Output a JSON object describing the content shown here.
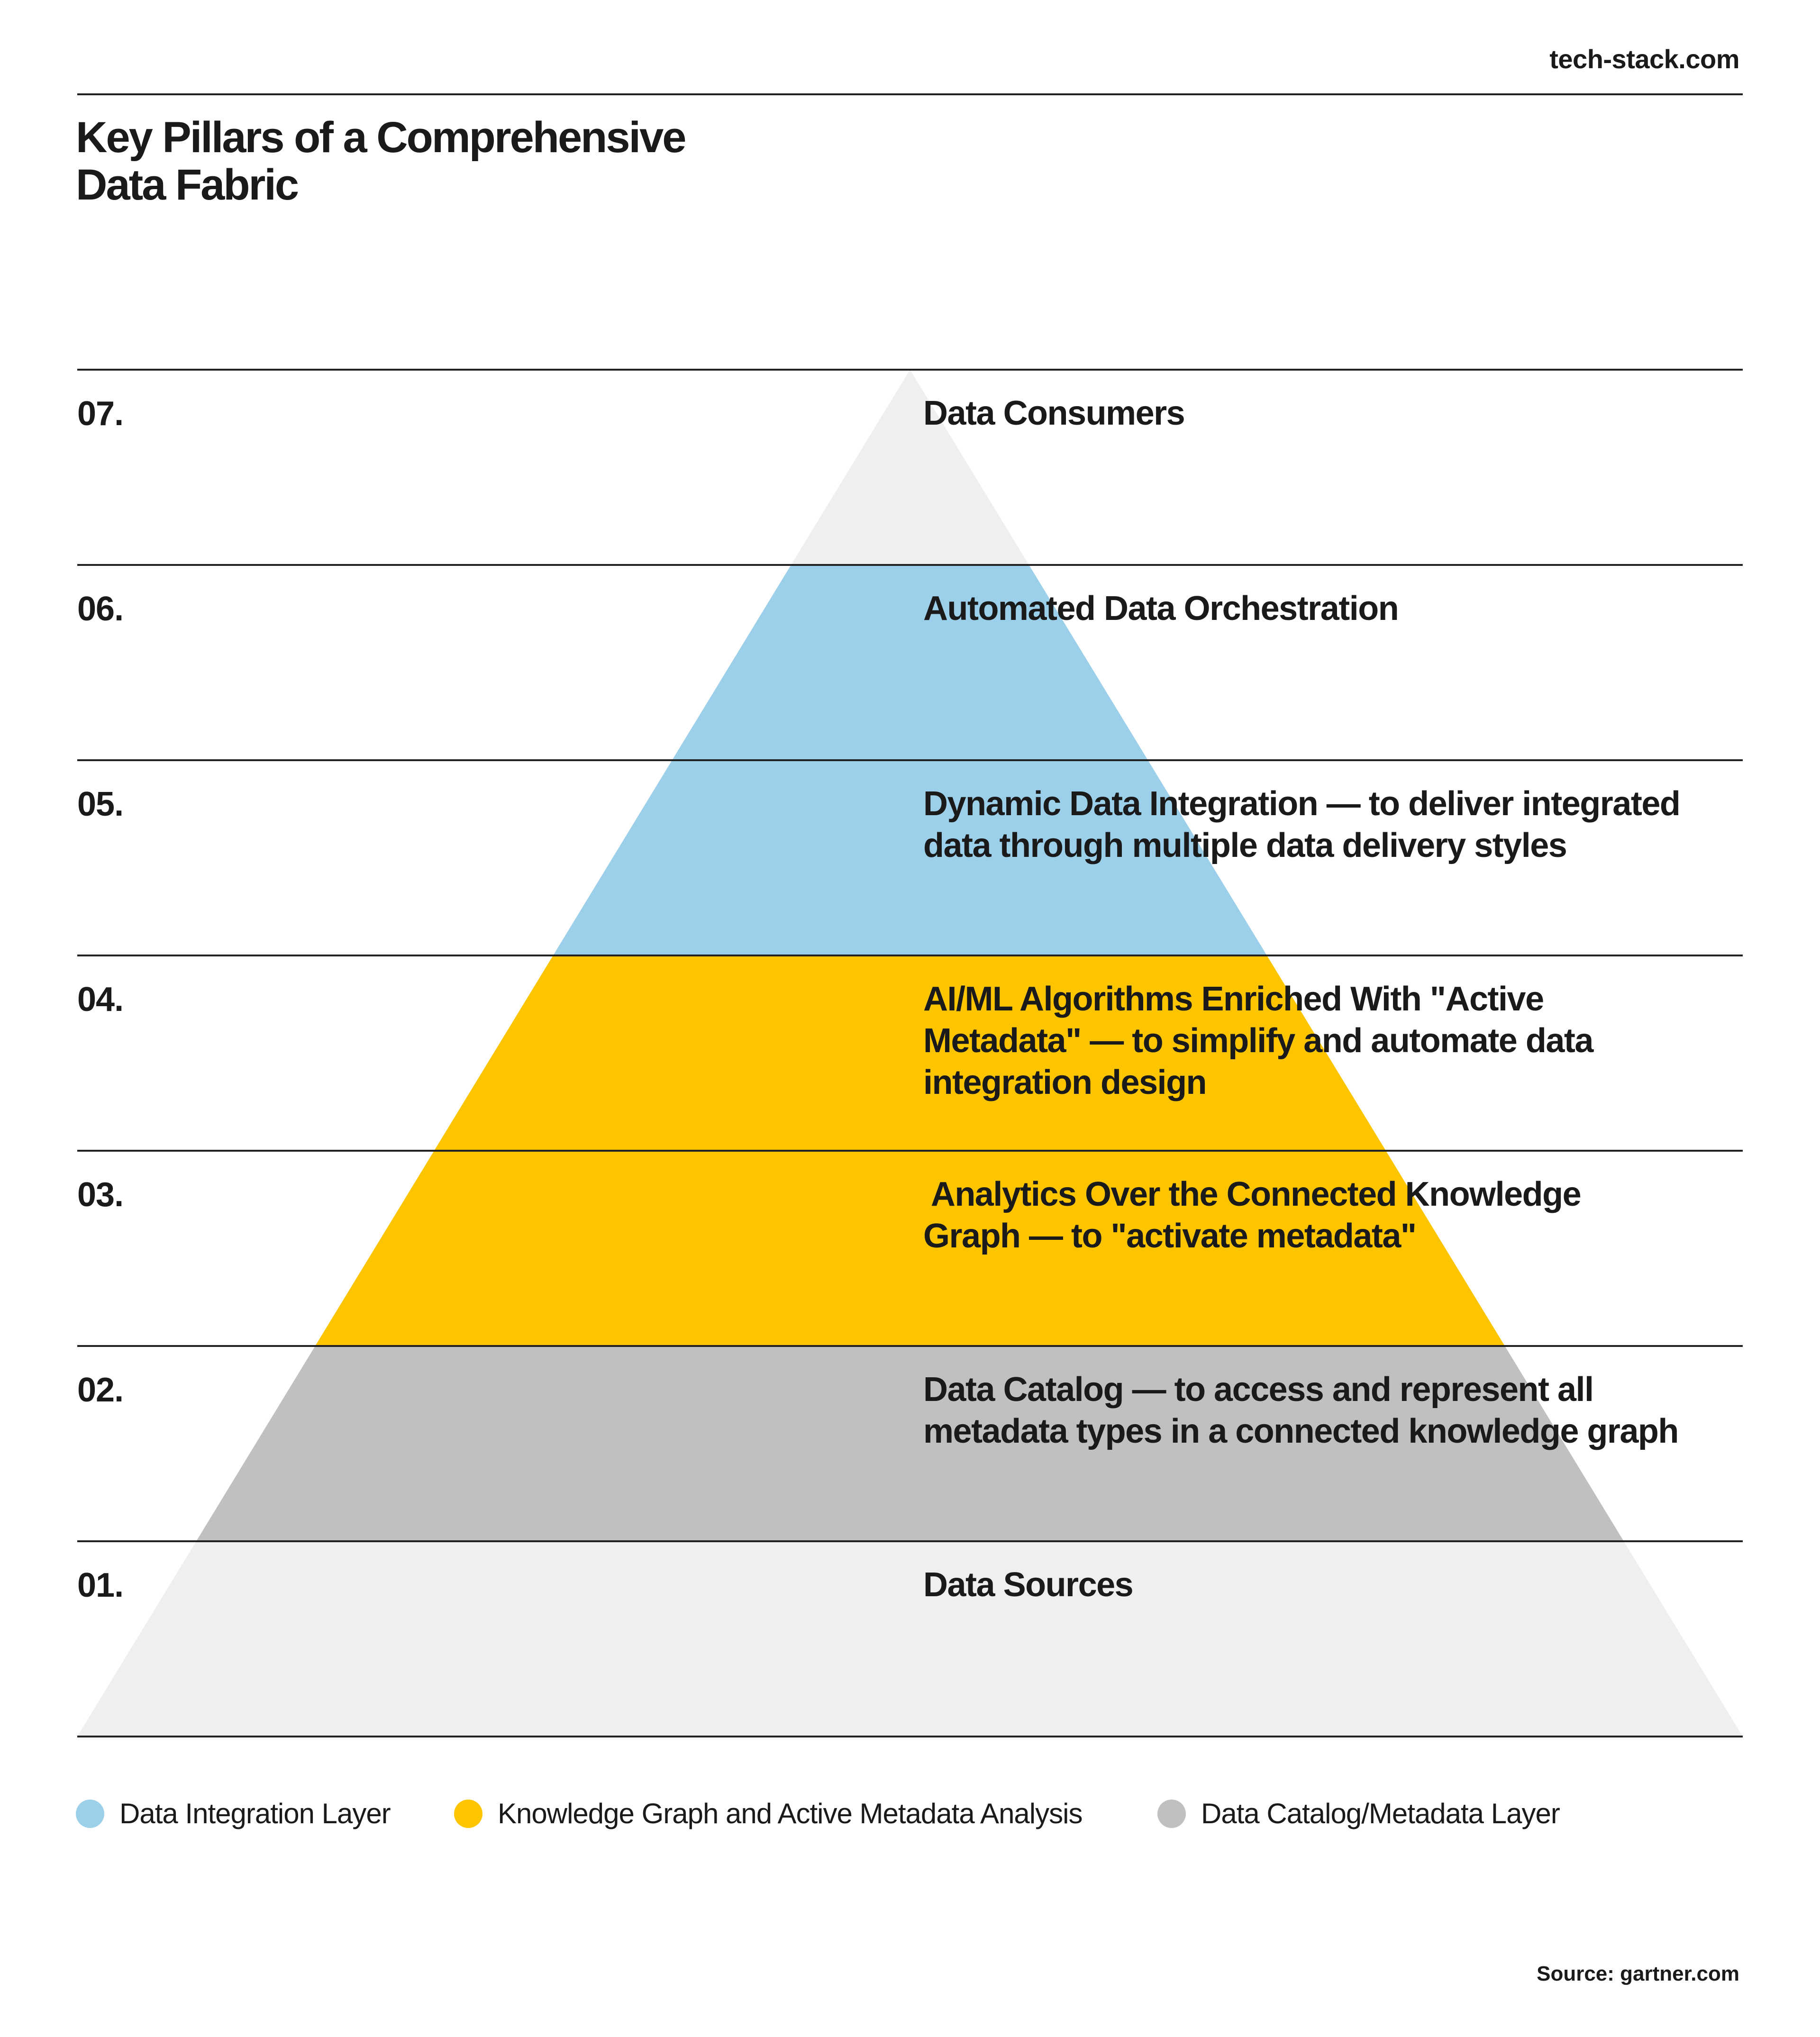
{
  "site": "tech-stack.com",
  "title": {
    "lines": [
      "Key Pillars of a Comprehensive",
      "Data Fabric"
    ]
  },
  "colors": {
    "integration": "#9ccfe9",
    "knowledge": "#fcc500",
    "catalog": "#c0c0c0",
    "neutral": "#efefef",
    "rule": "#222222"
  },
  "layers": [
    {
      "number": "07.",
      "lines": [
        "Data Consumers"
      ],
      "group": "neutral"
    },
    {
      "number": "06.",
      "lines": [
        "Automated Data Orchestration"
      ],
      "group": "integration"
    },
    {
      "number": "05.",
      "lines": [
        "Dynamic Data Integration — to deliver integrated",
        "data through multiple data delivery styles"
      ],
      "group": "integration"
    },
    {
      "number": "04.",
      "lines": [
        "AI/ML Algorithms Enriched With \"Active",
        "Metadata\" — to simplify and automate data",
        "integration design"
      ],
      "group": "knowledge"
    },
    {
      "number": "03.",
      "lines": [
        " Analytics Over the Connected Knowledge",
        "Graph — to \"activate metadata\""
      ],
      "group": "knowledge"
    },
    {
      "number": "02.",
      "lines": [
        "Data Catalog — to access and represent all",
        "metadata types in a connected knowledge graph"
      ],
      "group": "catalog"
    },
    {
      "number": "01.",
      "lines": [
        "Data Sources"
      ],
      "group": "neutral"
    }
  ],
  "legend": [
    {
      "label": "Data Integration Layer",
      "color": "#9ccfe9"
    },
    {
      "label": "Knowledge Graph and Active Metadata Analysis",
      "color": "#fcc500"
    },
    {
      "label": "Data Catalog/Metadata Layer",
      "color": "#c0c0c0"
    }
  ],
  "source": "Source: gartner.com"
}
